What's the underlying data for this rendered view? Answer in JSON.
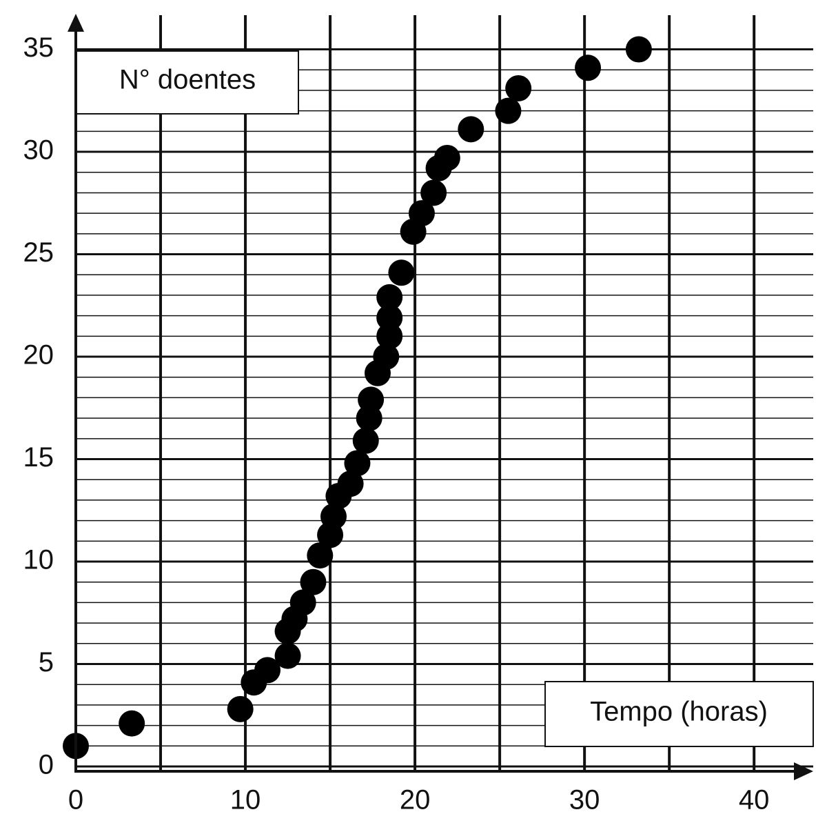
{
  "chart_data": {
    "type": "scatter",
    "y_label": "N° doentes",
    "x_label": "Tempo (horas)",
    "x": [
      0.0,
      3.3,
      9.7,
      10.5,
      11.3,
      12.5,
      12.5,
      12.9,
      13.4,
      14.0,
      14.4,
      15.0,
      15.2,
      15.5,
      16.2,
      16.6,
      17.1,
      17.3,
      17.4,
      17.8,
      18.3,
      18.5,
      18.5,
      18.5,
      19.2,
      19.9,
      20.4,
      21.1,
      21.4,
      21.9,
      23.3,
      25.5,
      26.1,
      30.2,
      33.2
    ],
    "values": [
      1.0,
      2.1,
      2.8,
      4.1,
      4.7,
      5.4,
      6.6,
      7.2,
      8.0,
      9.0,
      10.3,
      11.3,
      12.2,
      13.2,
      13.8,
      14.8,
      15.9,
      17.0,
      17.9,
      19.2,
      20.0,
      21.0,
      21.9,
      22.9,
      24.1,
      26.1,
      27.0,
      28.0,
      29.2,
      29.7,
      31.1,
      32.0,
      33.1,
      34.1,
      35.0
    ],
    "color": "#000000",
    "xlim": [
      0,
      43
    ],
    "ylim": [
      0,
      36.5
    ],
    "xticks": [
      0,
      10,
      20,
      30,
      40
    ],
    "yticks": [
      0,
      5,
      10,
      15,
      20,
      25,
      30,
      35
    ],
    "x_grid": [
      5,
      10,
      15,
      20,
      25,
      30,
      35,
      40
    ],
    "y_minor_grid": [
      1,
      2,
      3,
      4,
      6,
      7,
      8,
      9,
      11,
      12,
      13,
      14,
      16,
      17,
      18,
      19,
      21,
      22,
      23,
      24,
      26,
      27,
      28,
      29,
      31,
      32,
      33,
      34
    ],
    "grid": true
  }
}
